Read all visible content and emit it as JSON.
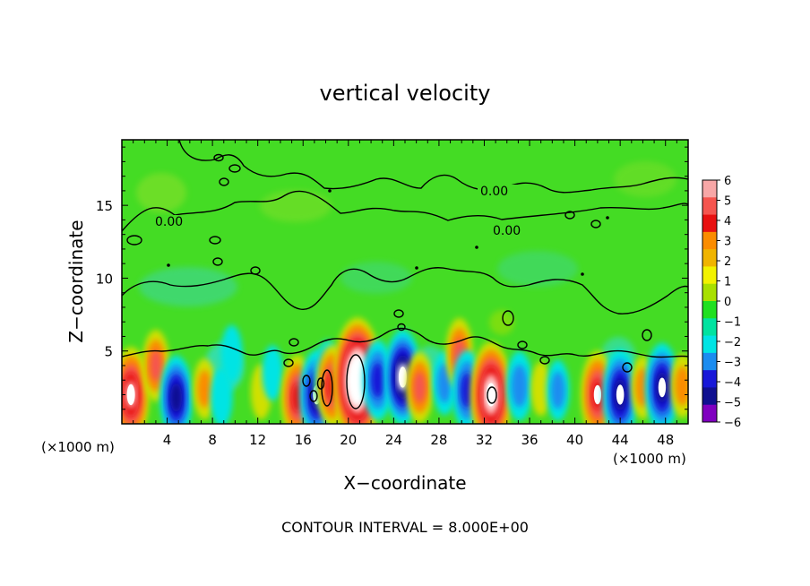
{
  "chart_data": {
    "type": "heatmap",
    "title": "vertical velocity",
    "xlabel": "X−coordinate",
    "ylabel": "Z−coordinate",
    "x_unit_left": "(×1000 m)",
    "x_unit_right": "(×1000 m)",
    "footer": "CONTOUR INTERVAL = 8.000E+00",
    "xlim": [
      0,
      50
    ],
    "ylim": [
      0,
      19.5
    ],
    "x_ticks": [
      "4",
      "8",
      "12",
      "16",
      "20",
      "24",
      "28",
      "32",
      "36",
      "40",
      "44",
      "48"
    ],
    "y_ticks": [
      "5",
      "10",
      "15"
    ],
    "colorbar": {
      "labels": [
        "6",
        "5",
        "4",
        "3",
        "2",
        "1",
        "0",
        "−1",
        "−2",
        "−3",
        "−4",
        "−5",
        "−6"
      ],
      "colors": [
        "#f7a7a7",
        "#f5554f",
        "#e81010",
        "#fb8c00",
        "#f0b400",
        "#f2f200",
        "#a8e000",
        "#20e020",
        "#00e3a0",
        "#00e4e4",
        "#1b8cf0",
        "#1818d8",
        "#101090",
        "#8000c0"
      ]
    },
    "contour_labels": [
      "0.00",
      "0.00",
      "0.00"
    ],
    "cells": [
      {
        "x": 0.8,
        "z": 2.0,
        "w": 5.2
      },
      {
        "x": 3.0,
        "z": 4.0,
        "w": 3.0
      },
      {
        "x": 4.8,
        "z": 1.8,
        "w": -4.2
      },
      {
        "x": 7.3,
        "z": 2.4,
        "w": 2.0
      },
      {
        "x": 8.8,
        "z": 1.8,
        "w": -1.8
      },
      {
        "x": 9.7,
        "z": 4.8,
        "w": -1.7
      },
      {
        "x": 12.3,
        "z": 2.2,
        "w": 1.5
      },
      {
        "x": 13.3,
        "z": 3.5,
        "w": -1.5
      },
      {
        "x": 15.5,
        "z": 1.8,
        "w": 4.3
      },
      {
        "x": 17.2,
        "z": 2.0,
        "w": -4.6
      },
      {
        "x": 18.2,
        "z": 3.2,
        "w": -3.2
      },
      {
        "x": 18.6,
        "z": 2.6,
        "w": 4.0
      },
      {
        "x": 20.8,
        "z": 3.0,
        "w": 8.0
      },
      {
        "x": 22.6,
        "z": 3.0,
        "w": -3.8
      },
      {
        "x": 24.8,
        "z": 3.2,
        "w": -5.2
      },
      {
        "x": 26.3,
        "z": 2.5,
        "w": 3.0
      },
      {
        "x": 28.5,
        "z": 2.8,
        "w": -2.3
      },
      {
        "x": 29.8,
        "z": 4.8,
        "w": 3.0
      },
      {
        "x": 30.5,
        "z": 2.3,
        "w": -3.8
      },
      {
        "x": 32.6,
        "z": 2.0,
        "w": 6.2
      },
      {
        "x": 35.1,
        "z": 2.6,
        "w": -2.8
      },
      {
        "x": 37.0,
        "z": 2.4,
        "w": 1.4
      },
      {
        "x": 38.5,
        "z": 2.3,
        "w": -2.0
      },
      {
        "x": 42.0,
        "z": 2.0,
        "w": 4.5
      },
      {
        "x": 44.0,
        "z": 2.0,
        "w": -4.8
      },
      {
        "x": 46.0,
        "z": 2.5,
        "w": 2.2
      },
      {
        "x": 47.7,
        "z": 2.5,
        "w": -4.6
      },
      {
        "x": 49.5,
        "z": 2.6,
        "w": 2.3
      }
    ]
  }
}
